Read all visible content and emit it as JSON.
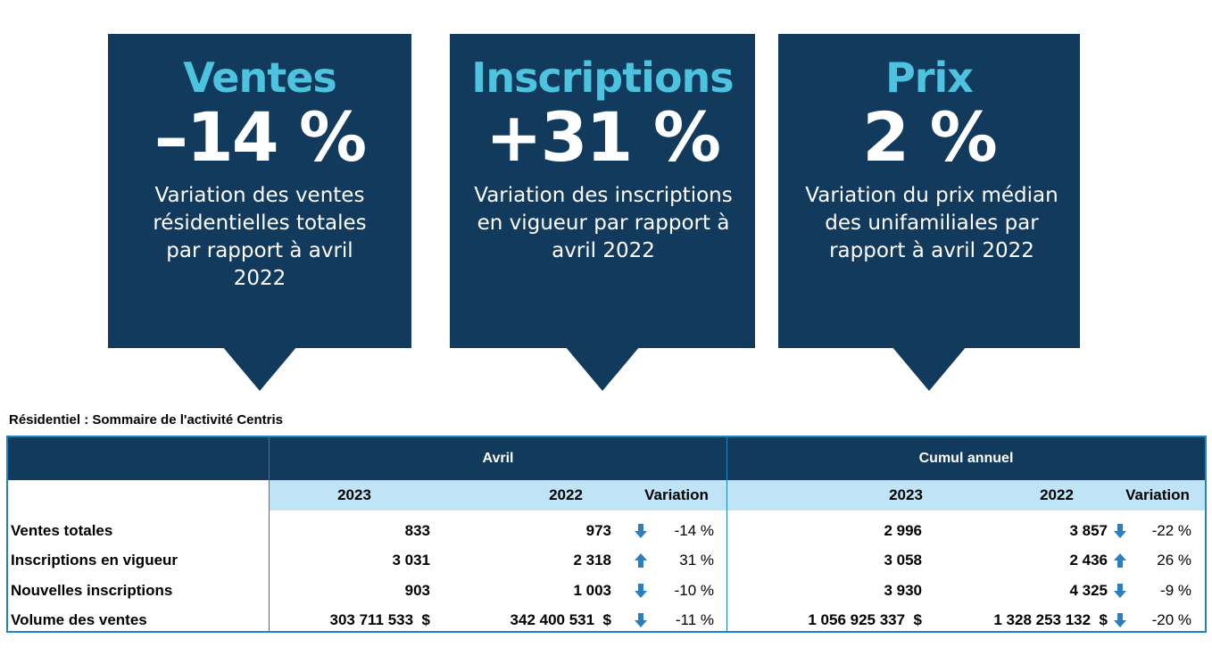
{
  "callouts": [
    {
      "title": "Ventes",
      "value": "–14 %",
      "description": "Variation des ventes résidentielles totales par rapport à avril 2022"
    },
    {
      "title": "Inscriptions",
      "value": "+31 %",
      "description": "Variation des inscriptions en vigueur par rapport à avril 2022"
    },
    {
      "title": "Prix",
      "value": "2 %",
      "description": "Variation du prix médian des unifamiliales par rapport à avril 2022"
    }
  ],
  "table": {
    "caption": "Résidentiel : Sommaire de l'activité Centris",
    "groups": [
      "Avril",
      "Cumul annuel"
    ],
    "subheaders": [
      "2023",
      "2022",
      "Variation",
      "2023",
      "2022",
      "Variation"
    ],
    "rows": [
      {
        "label": "Ventes totales",
        "avril_2023": "833",
        "avril_2022": "973",
        "avril_dir": "down",
        "avril_var": "-14 %",
        "cumul_2023": "2 996",
        "cumul_2022": "3 857",
        "cumul_dir": "down",
        "cumul_var": "-22 %"
      },
      {
        "label": "Inscriptions en vigueur",
        "avril_2023": "3 031",
        "avril_2022": "2 318",
        "avril_dir": "up",
        "avril_var": "31 %",
        "cumul_2023": "3 058",
        "cumul_2022": "2 436",
        "cumul_dir": "up",
        "cumul_var": "26 %"
      },
      {
        "label": "Nouvelles inscriptions",
        "avril_2023": "903",
        "avril_2022": "1 003",
        "avril_dir": "down",
        "avril_var": "-10 %",
        "cumul_2023": "3 930",
        "cumul_2022": "4 325",
        "cumul_dir": "down",
        "cumul_var": "-9 %"
      },
      {
        "label": "Volume des ventes",
        "avril_2023": "303 711 533  $",
        "avril_2022": "342 400 531  $",
        "avril_dir": "down",
        "avril_var": "-11 %",
        "cumul_2023": "1 056 925 337  $",
        "cumul_2022": "1 328 253 132  $",
        "cumul_dir": "down",
        "cumul_var": "-20 %"
      }
    ]
  },
  "colors": {
    "navy": "#123a5c",
    "title_cyan": "#4ec3e0",
    "subheader_bg": "#bfe4f5",
    "border_blue": "#1c86c0",
    "arrow_blue": "#2a7fc1"
  }
}
